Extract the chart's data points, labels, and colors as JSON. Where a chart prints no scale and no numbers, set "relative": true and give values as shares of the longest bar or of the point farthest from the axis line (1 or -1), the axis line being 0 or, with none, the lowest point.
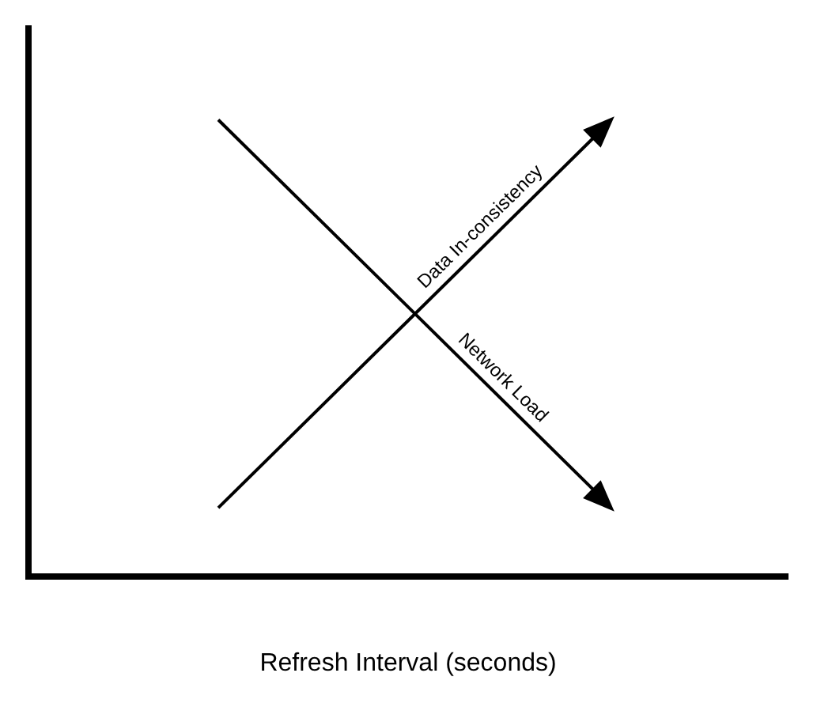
{
  "chart_data": {
    "type": "line",
    "relative": true,
    "xlabel": "Refresh Interval (seconds)",
    "categories": [
      null,
      null
    ],
    "series": [
      {
        "name": "Data In-consistency",
        "color": "#000000",
        "values": [
          0.15,
          0.97
        ]
      },
      {
        "name": "Network Load",
        "color": "#000000",
        "values": [
          1,
          0.18
        ]
      }
    ],
    "line_style": "solid",
    "grid": false,
    "legend": false
  }
}
